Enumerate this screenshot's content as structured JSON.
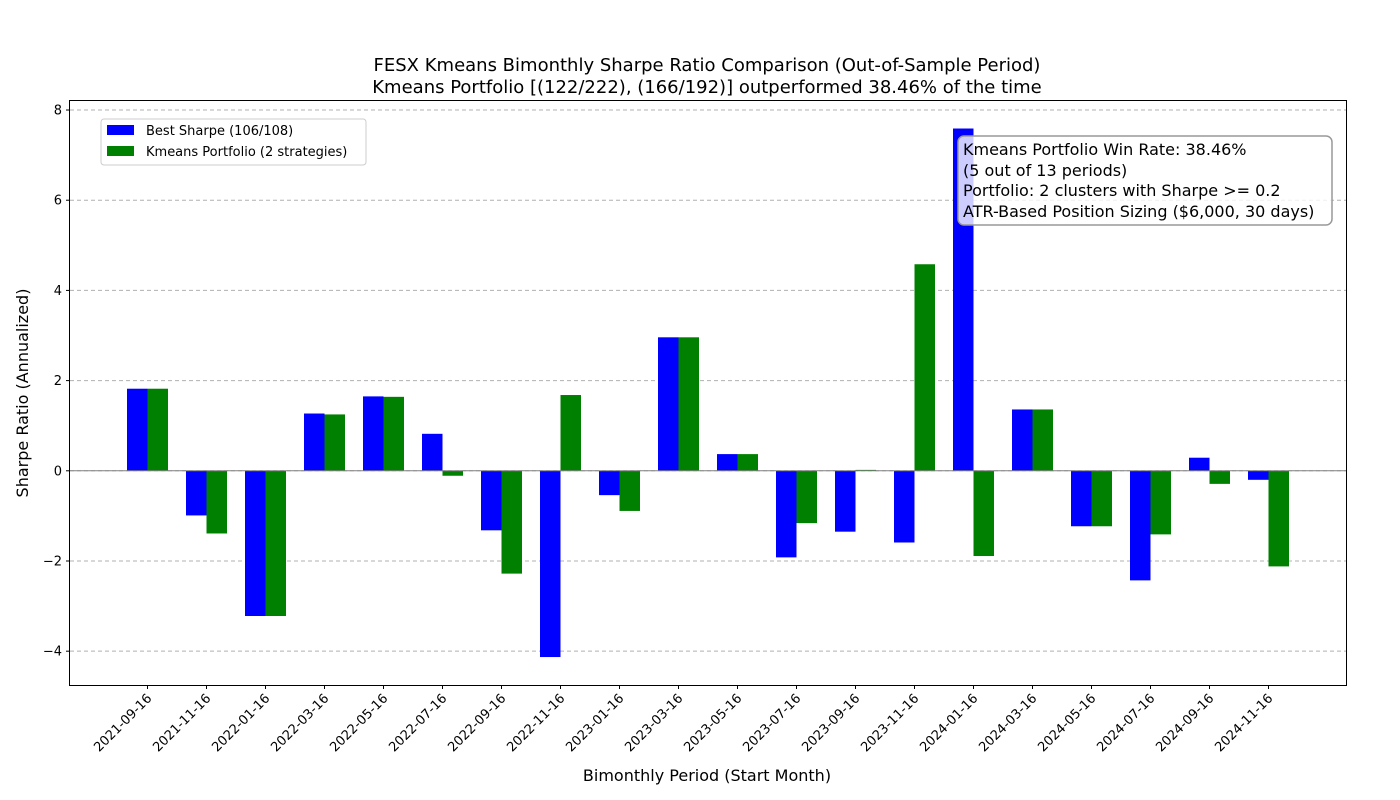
{
  "chart_data": {
    "type": "bar",
    "title": "FESX Kmeans Bimonthly Sharpe Ratio Comparison (Out-of-Sample Period)",
    "subtitle": "Kmeans Portfolio [(122/222), (166/192)] outperformed 38.46% of the time",
    "xlabel": "Bimonthly Period (Start Month)",
    "ylabel": "Sharpe Ratio (Annualized)",
    "ylim": [
      -4.75,
      8.2
    ],
    "yticks": [
      -4,
      -2,
      0,
      2,
      4,
      6,
      8
    ],
    "ytick_labels": [
      "−4",
      "−2",
      "0",
      "2",
      "4",
      "6",
      "8"
    ],
    "grid": true,
    "legend_position": "top-left",
    "categories": [
      "2021-09-16",
      "2021-11-16",
      "2022-01-16",
      "2022-03-16",
      "2022-05-16",
      "2022-07-16",
      "2022-09-16",
      "2022-11-16",
      "2023-01-16",
      "2023-03-16",
      "2023-05-16",
      "2023-07-16",
      "2023-09-16",
      "2023-11-16",
      "2024-01-16",
      "2024-03-16",
      "2024-05-16",
      "2024-07-16",
      "2024-09-16",
      "2024-11-16"
    ],
    "series": [
      {
        "name": "Best Sharpe (106/108)",
        "color": "#0000ff",
        "values": [
          1.82,
          -0.99,
          -3.22,
          1.27,
          1.65,
          0.82,
          -1.32,
          -4.13,
          -0.54,
          2.96,
          0.37,
          -1.92,
          -1.35,
          -1.59,
          7.59,
          1.36,
          -1.23,
          -2.43,
          0.29,
          -0.2
        ]
      },
      {
        "name": "Kmeans Portfolio (2 strategies)",
        "color": "#008000",
        "values": [
          1.82,
          -1.39,
          -3.22,
          1.25,
          1.64,
          -0.11,
          -2.28,
          1.68,
          -0.89,
          2.96,
          0.37,
          -1.16,
          0.02,
          4.58,
          -1.89,
          1.36,
          -1.23,
          -1.41,
          -0.29,
          -2.12
        ]
      }
    ],
    "annotation": {
      "lines": [
        "Kmeans Portfolio Win Rate: 38.46%",
        "(5 out of 13 periods)",
        "Portfolio: 2 clusters with Sharpe >= 0.2",
        "ATR-Based Position Sizing ($6,000, 30 days)"
      ]
    }
  }
}
